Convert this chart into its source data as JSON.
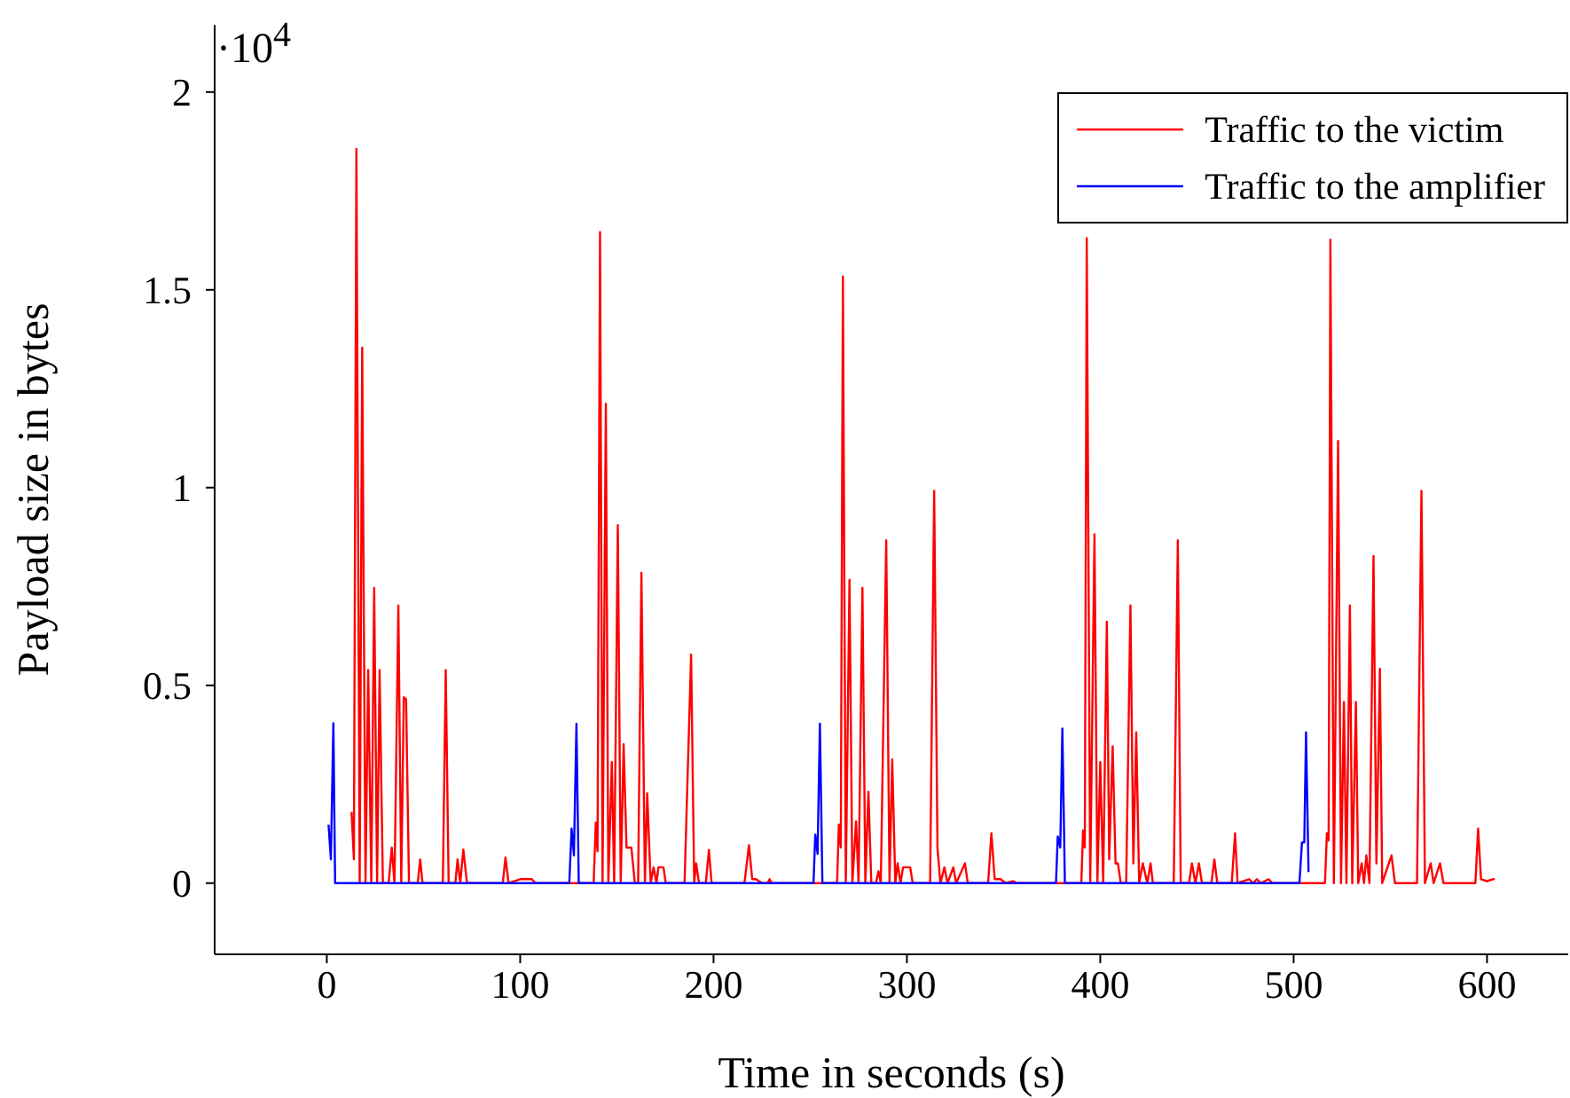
{
  "chart_data": {
    "type": "line",
    "xlabel": "Time in seconds (s)",
    "ylabel": "Payload size in bytes",
    "annotations": [
      "·10$^{4}$"
    ],
    "xlim": [
      -58,
      642
    ],
    "xticks": [
      0,
      100,
      200,
      300,
      400,
      500,
      600
    ],
    "ylim": [
      -0.18,
      2.17
    ],
    "yticks": [
      0,
      0.5,
      1,
      1.5,
      2
    ],
    "grid": false,
    "legend": "top right",
    "marker": "none",
    "line_style": "solid",
    "series": [
      {
        "name": "Traffic to the victim",
        "color": "#ff0000",
        "x": [
          12.8,
          14,
          15.3,
          17,
          18.3,
          20,
          21.4,
          23,
          24.5,
          26,
          27.3,
          29,
          32,
          33.6,
          35,
          37,
          38.5,
          39.8,
          41,
          42.5,
          47,
          48.3,
          49.5,
          60,
          61.5,
          63,
          66.5,
          67.6,
          69,
          70.6,
          72.5,
          91,
          92.4,
          94,
          100,
          106,
          108,
          138,
          139.1,
          140,
          141.3,
          142.6,
          144.3,
          145.6,
          147.4,
          148.6,
          150.5,
          152,
          153.5,
          155,
          157.5,
          159.3,
          161,
          162.7,
          164.5,
          165.7,
          167.5,
          169,
          170.5,
          171.5,
          174.1,
          175.3,
          185,
          188.4,
          190,
          191,
          192.5,
          196,
          197.6,
          199,
          216,
          218.3,
          220,
          222,
          225,
          228,
          229,
          230,
          263.9,
          264.8,
          265.8,
          266.9,
          268.4,
          270.3,
          271.8,
          273.7,
          275,
          277,
          278.5,
          280.1,
          281.6,
          284,
          285.3,
          286.5,
          289.3,
          291,
          292.4,
          294,
          295.2,
          296.7,
          298,
          301.7,
          303,
          312,
          314.1,
          315.8,
          317.3,
          319.4,
          321,
          324,
          325.5,
          330,
          331.5,
          342,
          343.7,
          345.4,
          348.5,
          351,
          355,
          357,
          390.2,
          391.1,
          392,
          393,
          394.8,
          397,
          398.5,
          400,
          401.5,
          403.4,
          404.6,
          406.4,
          407.9,
          409.1,
          410.6,
          413.4,
          415.6,
          417.1,
          418.6,
          420.1,
          422,
          424.3,
          426,
          427.2,
          438,
          440.1,
          441.6,
          445.9,
          447.4,
          449.2,
          451,
          452.6,
          457.5,
          459,
          460.5,
          468,
          469.7,
          471,
          477,
          479,
          481,
          483,
          487,
          489,
          516.2,
          517.2,
          518.1,
          519,
          520.8,
          523,
          524.5,
          526,
          527.3,
          529.1,
          530.3,
          532.2,
          533.4,
          535.2,
          536.4,
          537.6,
          539.2,
          541.3,
          542.8,
          544.6,
          545.8,
          550.6,
          552.4,
          563.8,
          566.1,
          567.9,
          570.9,
          572.4,
          575.7,
          577.5,
          594,
          595.4,
          596.9,
          600,
          603,
          604
        ],
        "values": [
          0.18,
          0.06,
          1.856,
          0,
          1.354,
          0,
          0.539,
          0,
          0.746,
          0,
          0.539,
          0,
          0,
          0.09,
          0,
          0.702,
          0,
          0.47,
          0.465,
          0,
          0,
          0.06,
          0,
          0,
          0.539,
          0,
          0,
          0.06,
          0,
          0.085,
          0,
          0,
          0.065,
          0,
          0.01,
          0.01,
          0,
          0,
          0.153,
          0.08,
          1.646,
          0,
          1.212,
          0,
          0.306,
          0,
          0.905,
          0,
          0.351,
          0.09,
          0.09,
          0,
          0,
          0.785,
          0,
          0.227,
          0,
          0.04,
          0,
          0.04,
          0.04,
          0,
          0,
          0.578,
          0,
          0.05,
          0,
          0,
          0.084,
          0,
          0,
          0.096,
          0.01,
          0.01,
          0,
          0,
          0.01,
          0,
          0,
          0.148,
          0.09,
          1.534,
          0,
          0.767,
          0,
          0.156,
          0,
          0.747,
          0,
          0.231,
          0,
          0,
          0.03,
          0,
          0.867,
          0,
          0.313,
          0,
          0.05,
          0,
          0.04,
          0.04,
          0,
          0,
          0.992,
          0.09,
          0,
          0.04,
          0,
          0.04,
          0,
          0.05,
          0,
          0,
          0.126,
          0.01,
          0.01,
          0,
          0.005,
          0,
          0,
          0.133,
          0.09,
          1.631,
          0,
          0.882,
          0,
          0.306,
          0,
          0.661,
          0.06,
          0.346,
          0.05,
          0.05,
          0,
          0,
          0.702,
          0.05,
          0.381,
          0,
          0.05,
          0,
          0.05,
          0,
          0,
          0.867,
          0,
          0,
          0.05,
          0,
          0.05,
          0,
          0,
          0.06,
          0,
          0,
          0.126,
          0,
          0.01,
          0,
          0.01,
          0,
          0.01,
          0,
          0,
          0.126,
          0.108,
          1.627,
          0,
          1.118,
          0,
          0.458,
          0,
          0.702,
          0,
          0.458,
          0,
          0.05,
          0,
          0.07,
          0,
          0.827,
          0.05,
          0.542,
          0,
          0.07,
          0,
          0,
          0.992,
          0,
          0.05,
          0,
          0.05,
          0,
          0,
          0.138,
          0.01,
          0.005,
          0.01,
          0.01
        ]
      },
      {
        "name": "Traffic to the amplifier",
        "color": "#0000ff",
        "x": [
          0.9,
          2.1,
          3.4,
          4.3,
          125.4,
          126.6,
          127.8,
          129.1,
          130.3,
          251.7,
          252.6,
          253.8,
          255,
          256.3,
          377.1,
          378,
          379.3,
          380.4,
          381.7,
          503,
          504.3,
          505.5,
          506.4,
          507.7
        ],
        "values": [
          0.148,
          0.06,
          0.404,
          0,
          0,
          0.138,
          0.07,
          0.403,
          0,
          0,
          0.123,
          0.074,
          0.403,
          0,
          0,
          0.118,
          0.09,
          0.391,
          0,
          0,
          0.103,
          0.103,
          0.381,
          0.028
        ]
      }
    ]
  }
}
